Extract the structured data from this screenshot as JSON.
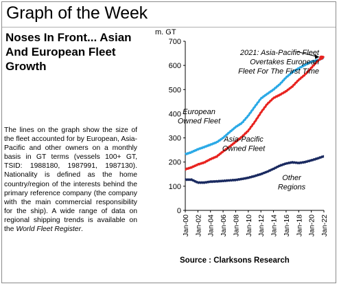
{
  "header": {
    "title": "Graph of the Week"
  },
  "subtitle": "Noses In Front... Asian And European Fleet Growth",
  "description": {
    "text": "The lines on the graph show the size of the fleet accounted for by European, Asia-Pacific and other owners on a monthly basis in GT terms (vessels 100+ GT, TSID: 1988180, 1987991, 1987130). Nationality is defined as the home country/region of the interests behind the primary reference company (the company with the main commercial responsibility for the ship). A wide range of data on regional shipping trends is available on the ",
    "reference": "World Fleet Register",
    "end": "."
  },
  "chart_data": {
    "type": "line",
    "y_unit_label": "m. GT",
    "ylim": [
      0,
      700
    ],
    "y_ticks": [
      "0",
      "100",
      "200",
      "300",
      "400",
      "500",
      "600",
      "700"
    ],
    "x_range": [
      2000,
      2022
    ],
    "x_ticks": [
      "Jan-00",
      "Jan-02",
      "Jan-04",
      "Jan-06",
      "Jan-08",
      "Jan-10",
      "Jan-12",
      "Jan-14",
      "Jan-16",
      "Jan-18",
      "Jan-20",
      "Jan-22"
    ],
    "grid": false,
    "source": "Source : Clarksons Research",
    "series": [
      {
        "name": "European Owned Fleet",
        "color": "#2aa9e6",
        "x": [
          2000,
          2001,
          2002,
          2003,
          2004,
          2005,
          2006,
          2007,
          2008,
          2009,
          2010,
          2011,
          2012,
          2013,
          2014,
          2015,
          2016,
          2017,
          2018,
          2019,
          2020,
          2021,
          2022
        ],
        "values": [
          232,
          241,
          253,
          262,
          272,
          282,
          300,
          323,
          345,
          362,
          392,
          428,
          463,
          482,
          500,
          522,
          550,
          572,
          588,
          602,
          615,
          622,
          632
        ]
      },
      {
        "name": "Asia-Pacific Owned Fleet",
        "color": "#e8231f",
        "x": [
          2000,
          2001,
          2002,
          2003,
          2004,
          2005,
          2006,
          2007,
          2008,
          2009,
          2010,
          2011,
          2012,
          2013,
          2014,
          2015,
          2016,
          2017,
          2018,
          2019,
          2020,
          2021,
          2022
        ],
        "values": [
          170,
          178,
          190,
          198,
          212,
          223,
          244,
          263,
          284,
          305,
          330,
          365,
          405,
          440,
          465,
          478,
          493,
          513,
          540,
          562,
          590,
          618,
          638
        ]
      },
      {
        "name": "Other Regions",
        "color": "#1a2a60",
        "x": [
          2000,
          2001,
          2002,
          2003,
          2004,
          2005,
          2006,
          2007,
          2008,
          2009,
          2010,
          2011,
          2012,
          2013,
          2014,
          2015,
          2016,
          2017,
          2018,
          2019,
          2020,
          2021,
          2022
        ],
        "values": [
          127,
          127,
          115,
          115,
          119,
          120,
          122,
          124,
          126,
          130,
          135,
          142,
          150,
          160,
          172,
          185,
          194,
          199,
          196,
          200,
          207,
          215,
          224
        ]
      }
    ],
    "annotations": [
      {
        "text": "2021: Asia-Pacific Fleet\nOvertakes European\nFleet For The First Time",
        "x": 2021.6,
        "y": 632
      },
      {
        "text": "European\nOwned Fleet",
        "series": 0
      },
      {
        "text": "Asia-Pacific\nOwned Fleet",
        "series": 1
      },
      {
        "text": "Other\nRegions",
        "series": 2
      }
    ]
  }
}
